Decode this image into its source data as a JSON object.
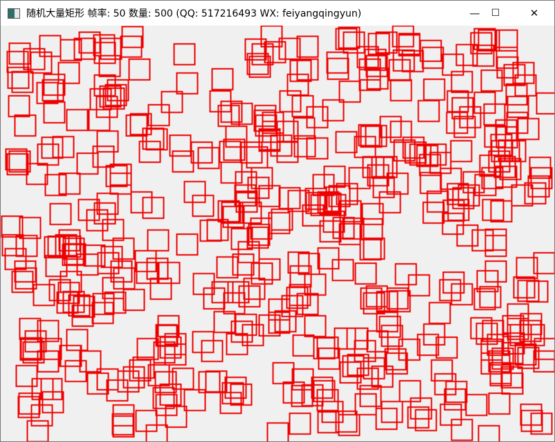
{
  "window": {
    "title": "随机大量矩形  帧率: 50  数量: 500 (QQ: 517216493 WX: feiyangqingyun)",
    "controls": {
      "minimize": "—",
      "maximize": "☐",
      "close": "✕"
    }
  },
  "scene": {
    "frame_rate": 50,
    "rect_count": 500,
    "rect_color": "#ee0000",
    "background": "#f0f0f0"
  }
}
